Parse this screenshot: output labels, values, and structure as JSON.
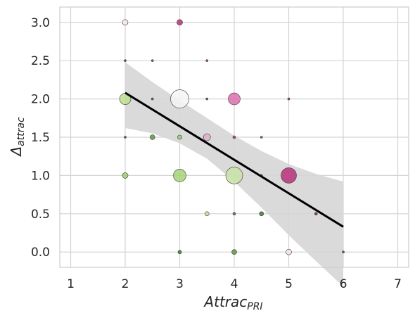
{
  "chart_data": {
    "type": "scatter",
    "title": "",
    "xlabel": {
      "base": "Attrac",
      "sub": "PRI"
    },
    "ylabel": {
      "base": "Δ",
      "sub": "attrac"
    },
    "xlim": [
      0.8,
      7.2
    ],
    "ylim": [
      -0.2,
      3.2
    ],
    "xticks": [
      1,
      2,
      3,
      4,
      5,
      6,
      7
    ],
    "yticks": [
      0.0,
      0.5,
      1.0,
      1.5,
      2.0,
      2.5,
      3.0
    ],
    "grid": true,
    "points": [
      {
        "x": 2.0,
        "y": 3.0,
        "size": 4,
        "color": "#f6e8f0"
      },
      {
        "x": 3.0,
        "y": 3.0,
        "size": 4,
        "color": "#b8317a"
      },
      {
        "x": 2.0,
        "y": 2.5,
        "size": 1.5,
        "color": "#7a2c4e"
      },
      {
        "x": 2.5,
        "y": 2.5,
        "size": 1.5,
        "color": "#4a6b3a"
      },
      {
        "x": 3.5,
        "y": 2.5,
        "size": 1.5,
        "color": "#a12a6c"
      },
      {
        "x": 2.0,
        "y": 2.0,
        "size": 8,
        "color": "#bcdf8e"
      },
      {
        "x": 2.5,
        "y": 2.0,
        "size": 1.5,
        "color": "#a12a6c"
      },
      {
        "x": 3.0,
        "y": 2.0,
        "size": 13,
        "color": "#f5f5f5"
      },
      {
        "x": 3.5,
        "y": 2.0,
        "size": 1.5,
        "color": "#4a6b3a"
      },
      {
        "x": 4.0,
        "y": 2.0,
        "size": 8.5,
        "color": "#db6fad"
      },
      {
        "x": 5.0,
        "y": 2.0,
        "size": 1.5,
        "color": "#a12a6c"
      },
      {
        "x": 2.0,
        "y": 1.5,
        "size": 1.5,
        "color": "#6d2a48"
      },
      {
        "x": 2.5,
        "y": 1.5,
        "size": 3.5,
        "color": "#5e9445"
      },
      {
        "x": 3.0,
        "y": 1.5,
        "size": 3,
        "color": "#9dcc6e"
      },
      {
        "x": 3.5,
        "y": 1.5,
        "size": 5,
        "color": "#e0b0cc"
      },
      {
        "x": 4.0,
        "y": 1.5,
        "size": 2,
        "color": "#a12a6c"
      },
      {
        "x": 4.5,
        "y": 1.5,
        "size": 1.5,
        "color": "#a12a6c"
      },
      {
        "x": 2.0,
        "y": 1.0,
        "size": 4,
        "color": "#9dcc6e"
      },
      {
        "x": 3.0,
        "y": 1.0,
        "size": 9,
        "color": "#a6d275"
      },
      {
        "x": 4.0,
        "y": 1.0,
        "size": 12,
        "color": "#c8e2a6"
      },
      {
        "x": 4.5,
        "y": 1.0,
        "size": 1.5,
        "color": "#4a6b3a"
      },
      {
        "x": 5.0,
        "y": 1.0,
        "size": 11,
        "color": "#b8317a"
      },
      {
        "x": 3.5,
        "y": 0.5,
        "size": 3,
        "color": "#bfe392"
      },
      {
        "x": 4.0,
        "y": 0.5,
        "size": 2,
        "color": "#3f7a32"
      },
      {
        "x": 4.5,
        "y": 0.5,
        "size": 3,
        "color": "#3f7a32"
      },
      {
        "x": 5.5,
        "y": 0.5,
        "size": 2,
        "color": "#7a2c4e"
      },
      {
        "x": 3.0,
        "y": 0.0,
        "size": 2.5,
        "color": "#3f7a32"
      },
      {
        "x": 4.0,
        "y": 0.0,
        "size": 3.5,
        "color": "#5e9445"
      },
      {
        "x": 5.0,
        "y": 0.0,
        "size": 4,
        "color": "#f6e0ec"
      },
      {
        "x": 6.0,
        "y": 0.0,
        "size": 1.5,
        "color": "#a12a6c"
      }
    ],
    "regression": {
      "x": [
        2.0,
        6.0
      ],
      "y": [
        2.08,
        0.33
      ],
      "ci_band": {
        "x": [
          2.0,
          2.5,
          3.0,
          3.5,
          4.0,
          4.5,
          5.0,
          5.5,
          6.0
        ],
        "lower": [
          1.62,
          1.55,
          1.42,
          1.22,
          0.92,
          0.58,
          0.22,
          -0.12,
          -0.45
        ],
        "upper": [
          2.48,
          2.22,
          1.98,
          1.75,
          1.52,
          1.32,
          1.15,
          1.02,
          0.92
        ]
      },
      "line_color": "#000000",
      "band_color": "#d6d6d6"
    }
  }
}
